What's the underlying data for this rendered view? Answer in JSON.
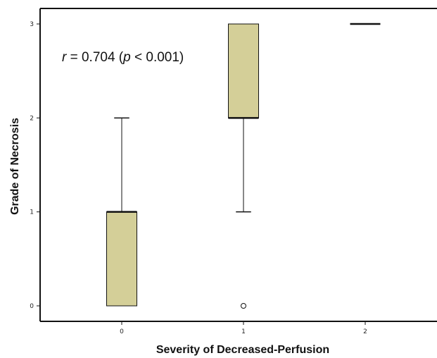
{
  "chart_data": {
    "type": "box",
    "xlabel": "Severity of Decreased-Perfusion",
    "ylabel": "Grade of Necrosis",
    "categories": [
      "0",
      "1",
      "2"
    ],
    "y_ticks": [
      "0",
      "1",
      "2",
      "3"
    ],
    "ylim": [
      -0.17,
      3.2
    ],
    "grid": false,
    "box_color": "#d4cf98",
    "annotation": {
      "r_symbol": "r",
      "r_text": " = 0.704 (",
      "p_symbol": "p",
      "p_text": " < 0.001)"
    },
    "boxes": [
      {
        "category": "0",
        "whisker_low": 0,
        "q1": 0,
        "median": 1,
        "q3": 1,
        "whisker_high": 2,
        "outliers": []
      },
      {
        "category": "1",
        "whisker_low": 1,
        "q1": 2,
        "median": 2,
        "q3": 3,
        "whisker_high": 3,
        "outliers": [
          0
        ]
      },
      {
        "category": "2",
        "whisker_low": 3,
        "q1": 3,
        "median": 3,
        "q3": 3,
        "whisker_high": 3,
        "outliers": []
      }
    ]
  }
}
